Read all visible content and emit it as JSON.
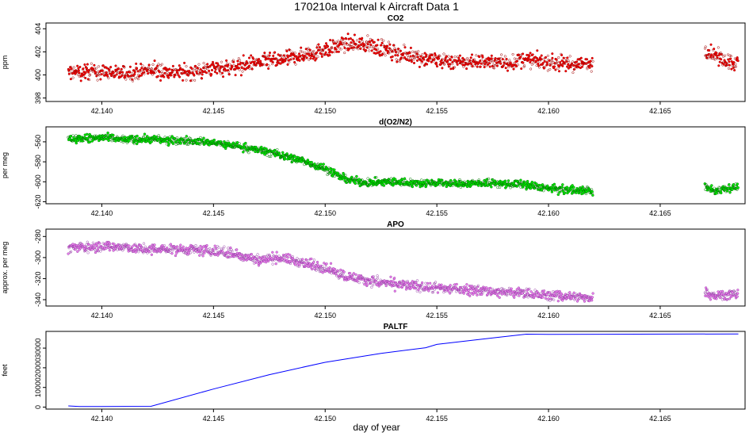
{
  "page": {
    "title": "170210a   Interval k Aircraft Data 1",
    "x_axis_label": "day of year"
  },
  "chart_data": [
    {
      "type": "scatter",
      "title": "CO2",
      "ylabel": "ppm",
      "xlim": [
        42.1375,
        42.1688
      ],
      "ylim": [
        397.7,
        404.5
      ],
      "xticks": [
        "42.140",
        "42.145",
        "42.150",
        "42.155",
        "42.160",
        "42.165"
      ],
      "yticks": [
        "398",
        "400",
        "402",
        "404"
      ],
      "color": "#ff0000",
      "series": [
        {
          "name": "CO2",
          "x": [
            42.1385,
            42.14,
            42.141,
            42.142,
            42.143,
            42.144,
            42.145,
            42.146,
            42.147,
            42.148,
            42.149,
            42.15,
            42.151,
            42.152,
            42.153,
            42.154,
            42.155,
            42.156,
            42.157,
            42.158,
            42.159,
            42.16,
            42.161,
            42.162,
            42.167,
            42.1675,
            42.168,
            42.1685
          ],
          "y": [
            400.2,
            400.3,
            400.1,
            400.4,
            400.3,
            400.2,
            400.6,
            400.7,
            401.1,
            401.3,
            401.7,
            402.2,
            402.7,
            402.6,
            402.0,
            401.6,
            401.3,
            401.1,
            401.2,
            401.0,
            401.3,
            401.1,
            400.9,
            401.0,
            402.2,
            401.6,
            401.3,
            401.0
          ]
        }
      ]
    },
    {
      "type": "scatter",
      "title": "d(O2/N2)",
      "ylabel": "per meg",
      "xlim": [
        42.1375,
        42.1688
      ],
      "ylim": [
        -622,
        -545
      ],
      "xticks": [
        "42.140",
        "42.145",
        "42.150",
        "42.155",
        "42.160",
        "42.165"
      ],
      "yticks": [
        "-560",
        "-580",
        "-600",
        "-620"
      ],
      "color": "#00ee00",
      "series": [
        {
          "name": "d(O2/N2)",
          "x": [
            42.1385,
            42.14,
            42.141,
            42.142,
            42.143,
            42.144,
            42.145,
            42.146,
            42.147,
            42.148,
            42.149,
            42.15,
            42.151,
            42.152,
            42.153,
            42.154,
            42.155,
            42.156,
            42.157,
            42.158,
            42.159,
            42.16,
            42.161,
            42.162,
            42.167,
            42.1675,
            42.168,
            42.1685
          ],
          "y": [
            -557,
            -556,
            -558,
            -557,
            -559,
            -559,
            -561,
            -564,
            -568,
            -573,
            -579,
            -587,
            -598,
            -601,
            -600,
            -601,
            -601,
            -602,
            -601,
            -602,
            -603,
            -607,
            -608,
            -609,
            -606,
            -609,
            -606,
            -605
          ]
        }
      ]
    },
    {
      "type": "scatter",
      "title": "APO",
      "ylabel": "approx. per meg",
      "xlim": [
        42.1375,
        42.1688
      ],
      "ylim": [
        -346,
        -273
      ],
      "xticks": [
        "42.140",
        "42.145",
        "42.150",
        "42.155",
        "42.160",
        "42.165"
      ],
      "yticks": [
        "-280",
        "-300",
        "-320",
        "-340"
      ],
      "color": "#ee82ee",
      "series": [
        {
          "name": "APO",
          "x": [
            42.1385,
            42.14,
            42.141,
            42.142,
            42.143,
            42.144,
            42.145,
            42.146,
            42.147,
            42.148,
            42.149,
            42.15,
            42.151,
            42.152,
            42.153,
            42.154,
            42.155,
            42.156,
            42.157,
            42.158,
            42.159,
            42.16,
            42.161,
            42.162,
            42.167,
            42.1675,
            42.168,
            42.1685
          ],
          "y": [
            -291,
            -289,
            -290,
            -293,
            -292,
            -293,
            -294,
            -297,
            -302,
            -300,
            -305,
            -310,
            -318,
            -322,
            -325,
            -327,
            -329,
            -330,
            -331,
            -333,
            -334,
            -336,
            -337,
            -338,
            -332,
            -336,
            -335,
            -335
          ]
        }
      ]
    },
    {
      "type": "line",
      "title": "PALTF",
      "ylabel": "feet",
      "xlim": [
        42.1375,
        42.1688
      ],
      "ylim": [
        -1000,
        38500
      ],
      "xticks": [
        "42.140",
        "42.145",
        "42.150",
        "42.155",
        "42.160",
        "42.165"
      ],
      "yticks": [
        "0",
        "10000",
        "20000",
        "30000"
      ],
      "color": "#0000ff",
      "series": [
        {
          "name": "PALTF",
          "x": [
            42.1385,
            42.139,
            42.1422,
            42.145,
            42.1475,
            42.15,
            42.1525,
            42.1545,
            42.155,
            42.157,
            42.159,
            42.16,
            42.1685
          ],
          "y": [
            600,
            300,
            400,
            9200,
            16500,
            22800,
            27300,
            30200,
            31900,
            34500,
            37100,
            37000,
            37200
          ]
        }
      ]
    }
  ]
}
